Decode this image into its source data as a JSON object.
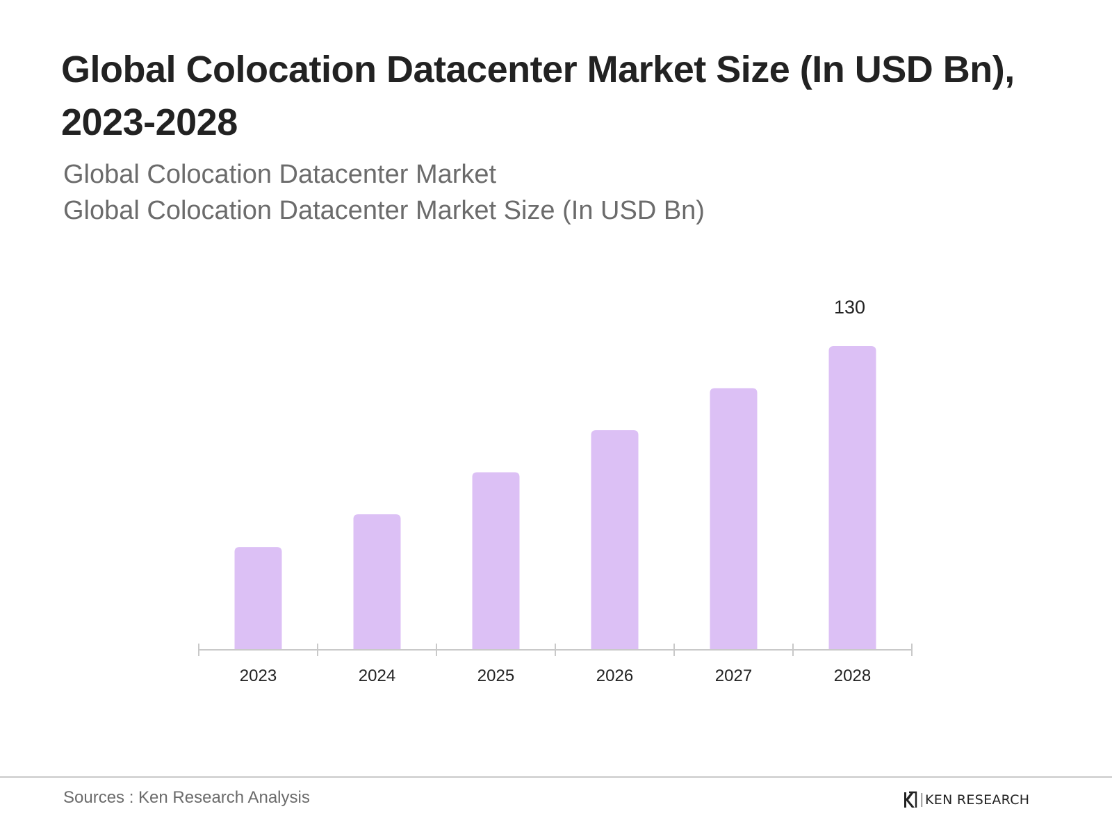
{
  "header": {
    "title": "Global Colocation Datacenter Market Size (In USD Bn), 2023-2028",
    "subtitle_1": "Global Colocation Datacenter Market",
    "subtitle_2": "Global Colocation Datacenter Market Size (In USD Bn)"
  },
  "chart_data": {
    "type": "bar",
    "title": "Global Colocation Datacenter Market Size (In USD Bn), 2023-2028",
    "categories": [
      "2023",
      "2024",
      "2025",
      "2026",
      "2027",
      "2028"
    ],
    "series": [
      {
        "name": "Global Colocation Datacenter Market Size (In USD Bn)",
        "values": [
          44,
          58,
          76,
          94,
          112,
          130
        ]
      }
    ],
    "data_labels": [
      {
        "category": "2028",
        "text": "130"
      }
    ],
    "xlabel": "",
    "ylabel": "",
    "ylim": [
      0,
      130
    ],
    "grid": false,
    "bar_color": "#dcc0f5",
    "axis_color": "#c9c9c9"
  },
  "footer": {
    "source": "Sources : Ken Research Analysis",
    "brand": "KEN RESEARCH"
  }
}
